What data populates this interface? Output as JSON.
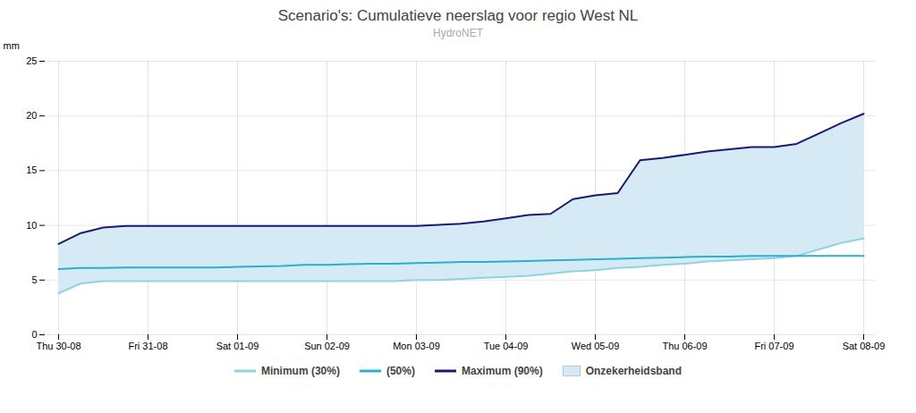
{
  "chart_data": {
    "type": "line",
    "title": "Scenario's: Cumulatieve neerslag voor regio West NL",
    "subtitle": "HydroNET",
    "ylabel": "mm",
    "categories": [
      "Thu 30-08",
      null,
      null,
      null,
      "Fri 31-08",
      null,
      null,
      null,
      "Sat 01-09",
      null,
      null,
      null,
      "Sun 02-09",
      null,
      null,
      null,
      "Mon 03-09",
      null,
      null,
      null,
      "Tue 04-09",
      null,
      null,
      null,
      "Wed 05-09",
      null,
      null,
      null,
      "Thu 06-09",
      null,
      null,
      null,
      "Fri 07-09",
      null,
      null,
      null,
      "Sat 08-09"
    ],
    "series": [
      {
        "name": "Minimum (30%)",
        "color": "#8dd4e0",
        "values": [
          3.8,
          4.7,
          4.9,
          4.9,
          4.9,
          4.9,
          4.9,
          4.9,
          4.9,
          4.9,
          4.9,
          4.9,
          4.9,
          4.9,
          4.9,
          4.9,
          5.0,
          5.0,
          5.1,
          5.2,
          5.3,
          5.4,
          5.6,
          5.8,
          5.9,
          6.1,
          6.2,
          6.4,
          6.5,
          6.7,
          6.8,
          6.9,
          7.0,
          7.2,
          7.8,
          8.4,
          8.8
        ]
      },
      {
        "name": "(50%)",
        "color": "#2ab0cc",
        "values": [
          6.0,
          6.1,
          6.1,
          6.15,
          6.15,
          6.15,
          6.15,
          6.15,
          6.2,
          6.25,
          6.3,
          6.4,
          6.4,
          6.45,
          6.5,
          6.5,
          6.55,
          6.6,
          6.65,
          6.65,
          6.7,
          6.75,
          6.8,
          6.85,
          6.9,
          6.95,
          7.0,
          7.05,
          7.1,
          7.15,
          7.15,
          7.2,
          7.2,
          7.2,
          7.2,
          7.2,
          7.2
        ]
      },
      {
        "name": "Maximum (90%)",
        "color": "#1a1a72",
        "values": [
          8.3,
          9.3,
          9.8,
          9.95,
          9.95,
          9.95,
          9.95,
          9.95,
          9.95,
          9.95,
          9.95,
          9.95,
          9.95,
          9.95,
          9.95,
          9.95,
          9.95,
          10.05,
          10.15,
          10.35,
          10.65,
          10.95,
          11.05,
          12.4,
          12.75,
          12.95,
          15.95,
          16.15,
          16.45,
          16.75,
          16.95,
          17.15,
          17.15,
          17.45,
          18.4,
          19.35,
          20.2
        ]
      }
    ],
    "band": {
      "name": "Onzekerheidsband",
      "color": "#d6eaf5",
      "lower": [
        3.8,
        4.7,
        4.9,
        4.9,
        4.9,
        4.9,
        4.9,
        4.9,
        4.9,
        4.9,
        4.9,
        4.9,
        4.9,
        4.9,
        4.9,
        4.9,
        5.0,
        5.0,
        5.1,
        5.2,
        5.3,
        5.4,
        5.6,
        5.8,
        5.9,
        6.1,
        6.2,
        6.4,
        6.5,
        6.7,
        6.8,
        6.9,
        7.0,
        7.2,
        7.8,
        8.4,
        8.8
      ],
      "upper": [
        8.3,
        9.3,
        9.8,
        9.95,
        9.95,
        9.95,
        9.95,
        9.95,
        9.95,
        9.95,
        9.95,
        9.95,
        9.95,
        9.95,
        9.95,
        9.95,
        9.95,
        10.05,
        10.15,
        10.35,
        10.65,
        10.95,
        11.05,
        12.4,
        12.75,
        12.95,
        15.95,
        16.15,
        16.45,
        16.75,
        16.95,
        17.15,
        17.15,
        17.45,
        18.4,
        19.35,
        20.2
      ]
    },
    "ylim": [
      0,
      25
    ],
    "yticks": [
      0,
      5,
      10,
      15,
      20,
      25
    ],
    "grid": true,
    "legend": "bottom"
  }
}
